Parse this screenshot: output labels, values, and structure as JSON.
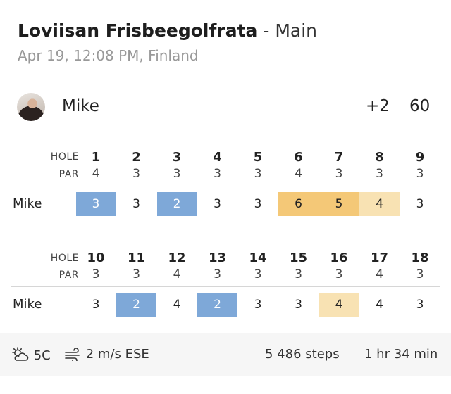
{
  "header": {
    "course": "Loviisan Frisbeegolfrata",
    "separator": "-",
    "layout": "Main",
    "datetime": "Apr 19, 12:08 PM, Finland"
  },
  "player": {
    "name": "Mike",
    "relative": "+2",
    "total": "60"
  },
  "labels": {
    "hole": "HOLE",
    "par": "PAR"
  },
  "front": {
    "holes": [
      "1",
      "2",
      "3",
      "4",
      "5",
      "6",
      "7",
      "8",
      "9"
    ],
    "pars": [
      "4",
      "3",
      "3",
      "3",
      "3",
      "4",
      "3",
      "3",
      "3"
    ],
    "scores": [
      "3",
      "3",
      "2",
      "3",
      "3",
      "6",
      "5",
      "4",
      "3"
    ],
    "results": [
      "birdie",
      "par",
      "birdie",
      "par",
      "par",
      "double",
      "double",
      "bogey",
      "par"
    ]
  },
  "back": {
    "holes": [
      "10",
      "11",
      "12",
      "13",
      "14",
      "15",
      "16",
      "17",
      "18"
    ],
    "pars": [
      "3",
      "3",
      "4",
      "3",
      "3",
      "3",
      "3",
      "4",
      "3"
    ],
    "scores": [
      "3",
      "2",
      "4",
      "2",
      "3",
      "3",
      "4",
      "4",
      "3"
    ],
    "results": [
      "par",
      "birdie",
      "par",
      "birdie",
      "par",
      "par",
      "bogey",
      "par",
      "par"
    ]
  },
  "colors": {
    "birdie": "#7ea8d8",
    "bogey": "#f8e2b3",
    "double_bogey": "#f4c877"
  },
  "footer": {
    "weather_icon": "cloudy-sun-icon",
    "temperature": "5C",
    "wind_icon": "wind-icon",
    "wind": "2 m/s ESE",
    "steps": "5 486 steps",
    "duration": "1 hr 34 min"
  }
}
